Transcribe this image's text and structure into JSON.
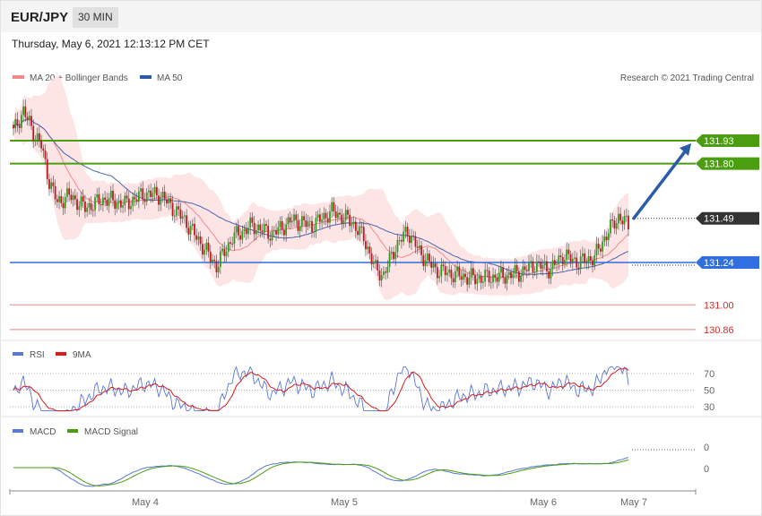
{
  "header": {
    "symbol": "EUR/JPY",
    "timeframe": "30 MIN",
    "timestamp": "Thursday, May 6, 2021 12:13:12 PM CET"
  },
  "legend": {
    "ma20": "MA 20 + Bollinger Bands",
    "ma50": "MA 50",
    "credit": "Research © 2021 Trading Central",
    "rsi": "RSI",
    "rsi_ma": "9MA",
    "macd": "MACD",
    "macd_signal": "MACD Signal"
  },
  "colors": {
    "resistance": "#4a9e10",
    "support": "#2f6fe0",
    "current": "#333333",
    "weak_level": "#f28080",
    "weak_level_text": "#d92b2b",
    "up_candle": "#2e9e1a",
    "down_candle": "#c0181f",
    "ma20": "#f08a8a",
    "ma50": "#4a67a8",
    "bands": "#fde0e0",
    "arrow": "#2a5ca8",
    "rsi": "#5a78d6",
    "rsi_ma": "#d91c1c",
    "macd": "#5a78d6",
    "macd_signal": "#4a9e10"
  },
  "chart_data": {
    "type": "candlestick",
    "symbol": "EUR/JPY",
    "timeframe": "30 MIN",
    "x_labels": [
      "May 4",
      "May 5",
      "May 6",
      "May 7"
    ],
    "price_levels": [
      {
        "value": 131.93,
        "label": "131.93",
        "kind": "resistance"
      },
      {
        "value": 131.8,
        "label": "131.80",
        "kind": "resistance"
      },
      {
        "value": 131.49,
        "label": "131.49",
        "kind": "current"
      },
      {
        "value": 131.24,
        "label": "131.24",
        "kind": "support"
      },
      {
        "value": 131.0,
        "label": "131.00",
        "kind": "level"
      },
      {
        "value": 130.86,
        "label": "130.86",
        "kind": "level"
      }
    ],
    "rsi_levels": [
      70,
      50,
      30
    ],
    "macd_levels": [
      "0",
      "0"
    ],
    "projection": {
      "from": 131.49,
      "to": 131.93
    }
  }
}
